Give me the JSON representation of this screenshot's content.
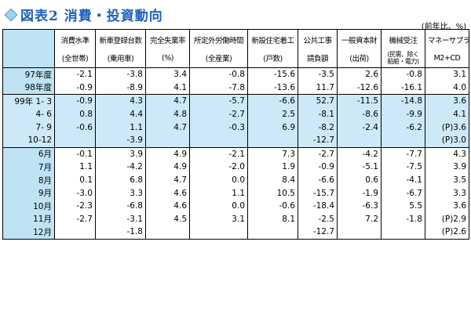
{
  "title": "図表2 消費・投資動向",
  "unit_note": "(前年比、%)",
  "columns": [
    {
      "name": "消費水準",
      "unit": "(全世帯)"
    },
    {
      "name": "新車登録台数",
      "unit": "(乗用車)"
    },
    {
      "name": "完全失業率",
      "unit": "(%)"
    },
    {
      "name": "所定外労働時間",
      "unit": "(全産業)"
    },
    {
      "name": "新設住宅着工",
      "unit": "(戸数)"
    },
    {
      "name": "公共工事",
      "unit": "請負額"
    },
    {
      "name": "一般資本財",
      "unit": "(出荷)"
    },
    {
      "name": "機械受注",
      "unit": "(民需、除く 船舶・電力)"
    },
    {
      "name": "マネーサプライ",
      "unit": "M2+CD"
    }
  ],
  "groups": [
    {
      "rows": [
        {
          "label": "97年度",
          "values": [
            "-2.1",
            "-3.8",
            "3.4",
            "-0.8",
            "-15.6",
            "-3.5",
            "2.6",
            "-0.8",
            "3.1"
          ]
        },
        {
          "label": "98年度",
          "values": [
            "-0.9",
            "-8.9",
            "4.1",
            "-7.8",
            "-13.6",
            "11.7",
            "-12.6",
            "-16.1",
            "4.0"
          ]
        }
      ]
    },
    {
      "rows": [
        {
          "label": "99年 1- 3",
          "values": [
            "-0.9",
            "4.3",
            "4.7",
            "-5.7",
            "-6.6",
            "52.7",
            "-11.5",
            "-14.8",
            "3.6"
          ]
        },
        {
          "label": "4- 6",
          "values": [
            "0.8",
            "4.4",
            "4.8",
            "-2.7",
            "2.5",
            "-8.1",
            "-8.6",
            "-9.9",
            "4.1"
          ]
        },
        {
          "label": "7- 9",
          "values": [
            "-0.6",
            "1.1",
            "4.7",
            "-0.3",
            "6.9",
            "-8.2",
            "-2.4",
            "-6.2",
            "(P)3.6"
          ]
        },
        {
          "label": "10-12",
          "values": [
            "",
            "-3.9",
            "",
            "",
            "",
            "-12.7",
            "",
            "",
            "(P)3.0"
          ]
        }
      ]
    },
    {
      "rows": [
        {
          "label": "6月",
          "values": [
            "-0.1",
            "3.9",
            "4.9",
            "-2.1",
            "7.3",
            "-2.7",
            "-4.2",
            "-7.7",
            "4.3"
          ]
        },
        {
          "label": "7月",
          "values": [
            "1.1",
            "-4.2",
            "4.9",
            "-2.0",
            "1.9",
            "-0.9",
            "-5.1",
            "-7.5",
            "3.9"
          ]
        },
        {
          "label": "8月",
          "values": [
            "0.1",
            "6.8",
            "4.7",
            "0.0",
            "8.4",
            "-6.6",
            "0.6",
            "-4.1",
            "3.5"
          ]
        },
        {
          "label": "9月",
          "values": [
            "-3.0",
            "3.3",
            "4.6",
            "1.1",
            "10.5",
            "-15.7",
            "-1.9",
            "-6.7",
            "3.3"
          ]
        },
        {
          "label": "10月",
          "values": [
            "-2.3",
            "-6.8",
            "4.6",
            "0.0",
            "-0.6",
            "-18.4",
            "-6.3",
            "5.5",
            "3.6"
          ]
        },
        {
          "label": "11月",
          "values": [
            "-2.7",
            "-3.1",
            "4.5",
            "3.1",
            "8.1",
            "-2.5",
            "7.2",
            "-1.8",
            "(P)2.9"
          ]
        },
        {
          "label": "12月",
          "values": [
            "",
            "-1.8",
            "",
            "",
            "",
            "-12.7",
            "",
            "",
            "(P)2.6"
          ]
        }
      ]
    }
  ]
}
